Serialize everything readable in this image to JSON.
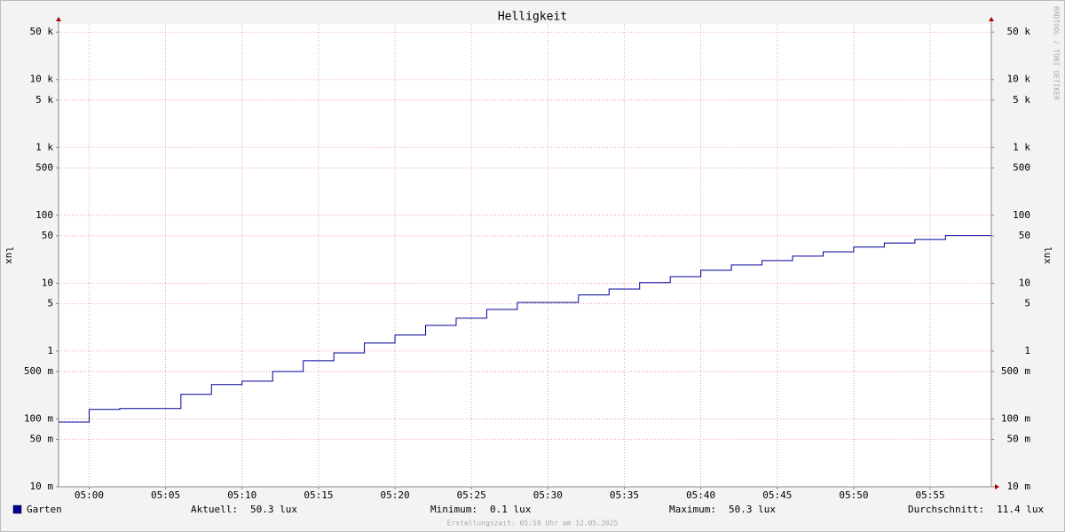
{
  "chart_data": {
    "type": "line",
    "step": "post",
    "title": "Helligkeit",
    "ylabel": "lux",
    "watermark": "RRDTOOL / TOBI OETIKER",
    "footer": "Erstellungszeit: 05:58 Uhr am 12.05.2025",
    "log_y": true,
    "grid": true,
    "x": [
      "04:58",
      "05:00",
      "05:02",
      "05:04",
      "05:06",
      "05:08",
      "05:10",
      "05:12",
      "05:14",
      "05:16",
      "05:18",
      "05:20",
      "05:22",
      "05:24",
      "05:26",
      "05:28",
      "05:30",
      "05:32",
      "05:34",
      "05:36",
      "05:38",
      "05:40",
      "05:42",
      "05:44",
      "05:46",
      "05:48",
      "05:50",
      "05:52",
      "05:54",
      "05:56"
    ],
    "xlim": [
      "04:58",
      "05:59"
    ],
    "xticks": [
      "05:00",
      "05:05",
      "05:10",
      "05:15",
      "05:20",
      "05:25",
      "05:30",
      "05:35",
      "05:40",
      "05:45",
      "05:50",
      "05:55"
    ],
    "ylim": [
      0.01,
      66000
    ],
    "yticks": [
      {
        "value": 50000,
        "label": "50 k"
      },
      {
        "value": 10000,
        "label": "10 k"
      },
      {
        "value": 5000,
        "label": "5 k"
      },
      {
        "value": 1000,
        "label": "1 k"
      },
      500,
      100,
      50,
      10,
      5,
      1,
      {
        "value": 0.5,
        "label": "500 m"
      },
      {
        "value": 0.1,
        "label": "100 m"
      },
      {
        "value": 0.05,
        "label": "50 m"
      },
      {
        "value": 0.01,
        "label": "10 m"
      }
    ],
    "series": [
      {
        "name": "Garten",
        "color": "#000099",
        "values": [
          0.09,
          0.138,
          0.142,
          0.142,
          0.23,
          0.32,
          0.36,
          0.5,
          0.72,
          0.94,
          1.31,
          1.72,
          2.39,
          3.05,
          4.1,
          5.2,
          5.2,
          6.7,
          8.2,
          10.2,
          12.5,
          15.5,
          18.5,
          21.5,
          25,
          29,
          34,
          39,
          44,
          50.3
        ]
      }
    ],
    "stats": [
      {
        "label": "Aktuell:",
        "value": "50.3 lux"
      },
      {
        "label": "Minimum:",
        "value": "0.1 lux"
      },
      {
        "label": "Maximum:",
        "value": "50.3 lux"
      },
      {
        "label": "Durchschnitt:",
        "value": "11.4 lux"
      }
    ]
  }
}
